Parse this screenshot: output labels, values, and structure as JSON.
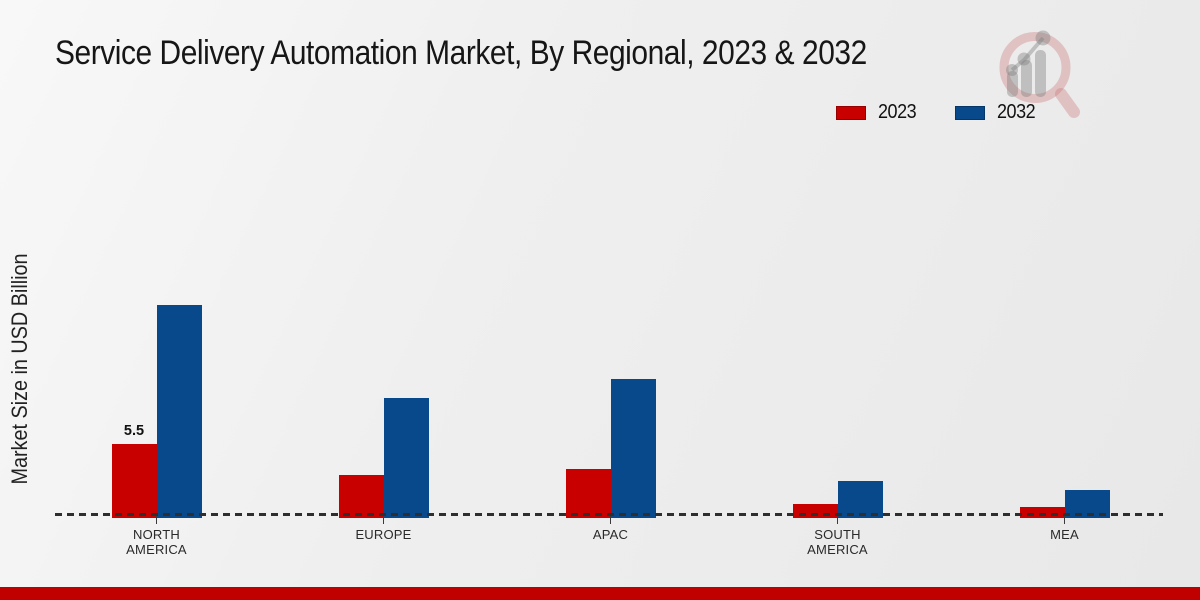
{
  "title": "Service Delivery Automation Market, By Regional, 2023 & 2032",
  "y_axis_label": "Market Size in USD Billion",
  "chart_data": {
    "type": "bar",
    "title": "Service Delivery Automation Market, By Regional, 2023 & 2032",
    "xlabel": "",
    "ylabel": "Market Size in USD Billion",
    "units": "USD Billion",
    "categories": [
      "NORTH AMERICA",
      "EUROPE",
      "APAC",
      "SOUTH AMERICA",
      "MEA"
    ],
    "series": [
      {
        "name": "2023",
        "color": "#c80000",
        "values": [
          5.5,
          3.1,
          3.5,
          0.8,
          0.55
        ]
      },
      {
        "name": "2032",
        "color": "#07498b",
        "values": [
          16.4,
          9.1,
          10.6,
          2.6,
          1.9
        ]
      }
    ],
    "data_labels": [
      {
        "series": "2023",
        "category": "NORTH AMERICA",
        "text": "5.5"
      }
    ],
    "ylim": [
      0,
      18
    ],
    "grid": false,
    "y_axis_ticks_visible": false,
    "legend_position": "top-right",
    "baseline_style": "dashed"
  },
  "footer": {
    "accent_color": "#c00000"
  },
  "watermark": {
    "name": "market-research-growth-logo",
    "ring_color": "rgba(198,106,106,0.32)",
    "bar_color": "rgba(125,125,125,0.40)"
  }
}
